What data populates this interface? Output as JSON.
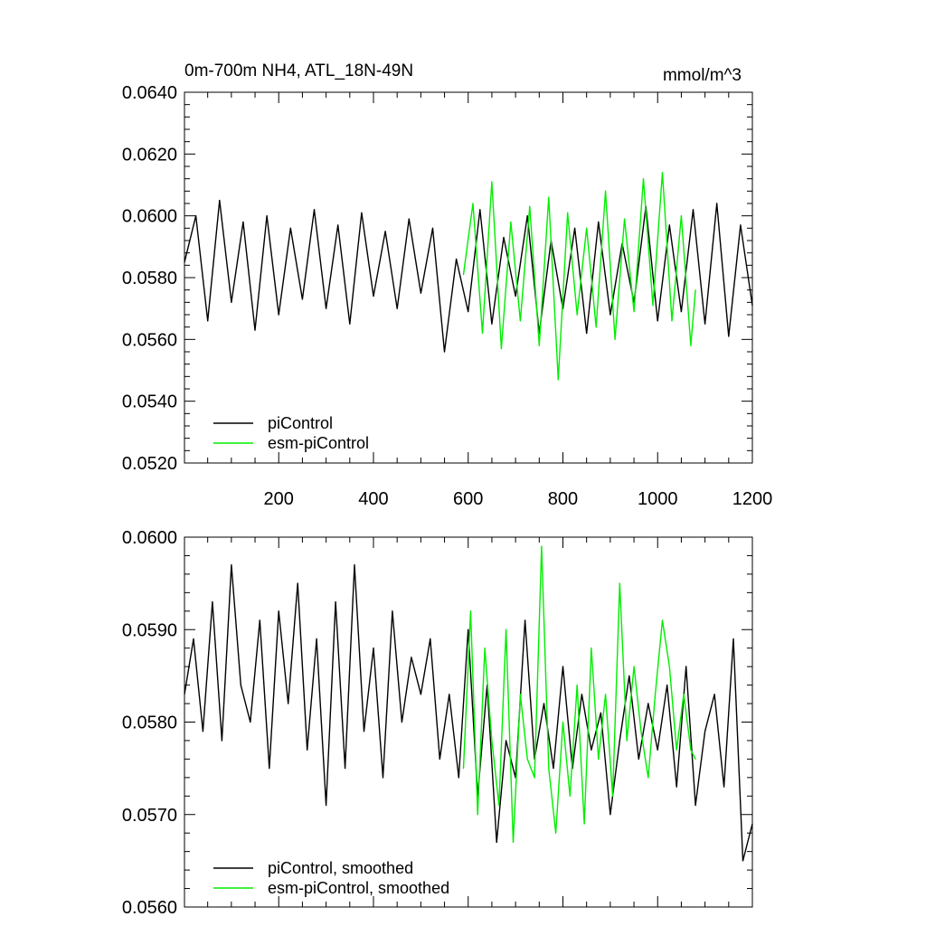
{
  "chart_data": [
    {
      "type": "line",
      "title": "0m-700m NH4, ATL_18N-49N",
      "units": "mmol/m^3",
      "xlim": [
        1,
        1200
      ],
      "ylim": [
        0.052,
        0.064
      ],
      "xticks": [
        200,
        400,
        600,
        800,
        1000,
        1200
      ],
      "xtick_labels": [
        "200",
        "400",
        "600",
        "800",
        "1000",
        "1200"
      ],
      "yticks": [
        0.052,
        0.054,
        0.056,
        0.058,
        0.06,
        0.062,
        0.064
      ],
      "ytick_labels": [
        "0.0520",
        "0.0540",
        "0.0560",
        "0.0580",
        "0.0600",
        "0.0620",
        "0.0640"
      ],
      "grid": false,
      "legend_position": "bottom-left",
      "series": [
        {
          "name": "piControl",
          "color": "#000000",
          "x": [
            1,
            25,
            50,
            75,
            100,
            125,
            150,
            175,
            200,
            225,
            250,
            275,
            300,
            325,
            350,
            375,
            400,
            425,
            450,
            475,
            500,
            525,
            550,
            575,
            600,
            625,
            650,
            675,
            700,
            725,
            750,
            775,
            800,
            825,
            850,
            875,
            900,
            925,
            950,
            975,
            1000,
            1025,
            1050,
            1075,
            1100,
            1125,
            1150,
            1175,
            1200
          ],
          "y": [
            0.0585,
            0.06,
            0.0566,
            0.0605,
            0.0572,
            0.0598,
            0.0563,
            0.06,
            0.0568,
            0.0596,
            0.0573,
            0.0602,
            0.057,
            0.0597,
            0.0565,
            0.0601,
            0.0574,
            0.0595,
            0.057,
            0.0599,
            0.0575,
            0.0596,
            0.0556,
            0.0586,
            0.0569,
            0.0602,
            0.0565,
            0.0593,
            0.0574,
            0.06,
            0.0562,
            0.0592,
            0.057,
            0.0596,
            0.0562,
            0.0598,
            0.0568,
            0.0591,
            0.0572,
            0.0603,
            0.0566,
            0.0597,
            0.0569,
            0.0602,
            0.0565,
            0.0604,
            0.0561,
            0.0597,
            0.0571
          ]
        },
        {
          "name": "esm-piControl",
          "color": "#00ee00",
          "x": [
            590,
            610,
            630,
            650,
            670,
            690,
            710,
            730,
            750,
            770,
            790,
            810,
            830,
            850,
            870,
            890,
            910,
            930,
            950,
            970,
            990,
            1010,
            1030,
            1050,
            1070,
            1080
          ],
          "y": [
            0.0581,
            0.0604,
            0.0562,
            0.0611,
            0.0557,
            0.0598,
            0.0566,
            0.0603,
            0.0558,
            0.0606,
            0.0547,
            0.0601,
            0.0568,
            0.0596,
            0.0564,
            0.0608,
            0.056,
            0.0599,
            0.0569,
            0.0612,
            0.0571,
            0.0614,
            0.0566,
            0.06,
            0.0558,
            0.0576
          ]
        }
      ]
    },
    {
      "type": "line",
      "xlim": [
        1,
        1200
      ],
      "ylim": [
        0.056,
        0.06
      ],
      "xticks": [
        200,
        400,
        600,
        800,
        1000,
        1200
      ],
      "yticks": [
        0.056,
        0.057,
        0.058,
        0.059,
        0.06
      ],
      "ytick_labels": [
        "0.0560",
        "0.0570",
        "0.0580",
        "0.0590",
        "0.0600"
      ],
      "grid": false,
      "legend_position": "bottom-left",
      "series": [
        {
          "name": "piControl, smoothed",
          "color": "#000000",
          "x": [
            1,
            20,
            40,
            60,
            80,
            100,
            120,
            140,
            160,
            180,
            200,
            220,
            240,
            260,
            280,
            300,
            320,
            340,
            360,
            380,
            400,
            420,
            440,
            460,
            480,
            500,
            520,
            540,
            560,
            580,
            600,
            620,
            640,
            660,
            680,
            700,
            720,
            740,
            760,
            780,
            800,
            820,
            840,
            860,
            880,
            900,
            920,
            940,
            960,
            980,
            1000,
            1020,
            1040,
            1060,
            1080,
            1100,
            1120,
            1140,
            1160,
            1180,
            1200
          ],
          "y": [
            0.0583,
            0.0589,
            0.0579,
            0.0593,
            0.0578,
            0.0597,
            0.0584,
            0.058,
            0.0591,
            0.0575,
            0.0592,
            0.0582,
            0.0595,
            0.0577,
            0.0589,
            0.0571,
            0.0593,
            0.0575,
            0.0597,
            0.0579,
            0.0588,
            0.0574,
            0.0592,
            0.058,
            0.0587,
            0.0583,
            0.0589,
            0.0576,
            0.0583,
            0.0574,
            0.059,
            0.0572,
            0.0584,
            0.0567,
            0.0578,
            0.0574,
            0.0591,
            0.0576,
            0.0582,
            0.0575,
            0.0586,
            0.0575,
            0.0583,
            0.0577,
            0.0581,
            0.057,
            0.0578,
            0.0585,
            0.0576,
            0.0582,
            0.0577,
            0.0584,
            0.0573,
            0.0586,
            0.0571,
            0.0579,
            0.0583,
            0.0573,
            0.0589,
            0.0565,
            0.0569
          ]
        },
        {
          "name": "esm-piControl, smoothed",
          "color": "#00ee00",
          "x": [
            590,
            605,
            620,
            635,
            650,
            665,
            680,
            695,
            710,
            725,
            740,
            755,
            770,
            785,
            800,
            815,
            830,
            845,
            860,
            875,
            890,
            905,
            920,
            935,
            950,
            965,
            980,
            995,
            1010,
            1025,
            1040,
            1055,
            1070,
            1080
          ],
          "y": [
            0.0575,
            0.0592,
            0.057,
            0.0588,
            0.0578,
            0.0571,
            0.059,
            0.0567,
            0.0583,
            0.0576,
            0.0574,
            0.0599,
            0.0575,
            0.0568,
            0.058,
            0.0572,
            0.0584,
            0.0569,
            0.0588,
            0.0576,
            0.0583,
            0.0572,
            0.0595,
            0.0578,
            0.0586,
            0.0579,
            0.0574,
            0.0583,
            0.0591,
            0.0586,
            0.0577,
            0.0583,
            0.0577,
            0.0576
          ]
        }
      ]
    }
  ]
}
